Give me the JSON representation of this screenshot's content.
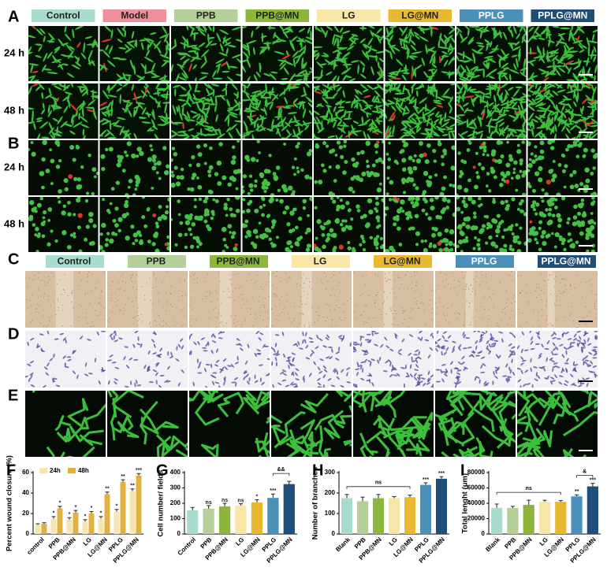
{
  "panel_labels": [
    "A",
    "B",
    "C",
    "D",
    "E",
    "F",
    "G",
    "H",
    "I"
  ],
  "groups_ab": [
    "Control",
    "Model",
    "PPB",
    "PPB@MN",
    "LG",
    "LG@MN",
    "PPLG",
    "PPLG@MN"
  ],
  "colors_ab": [
    "#a8dccf",
    "#ef8f9a",
    "#b5cf98",
    "#8db63c",
    "#f7e6a6",
    "#e8b92f",
    "#4a90b8",
    "#1f4e79"
  ],
  "times": [
    "24 h",
    "48 h"
  ],
  "groups_c": [
    "Control",
    "PPB",
    "PPB@MN",
    "LG",
    "LG@MN",
    "PPLG",
    "PPLG@MN"
  ],
  "colors_c": [
    "#a8dccf",
    "#b5cf98",
    "#8db63c",
    "#f7e6a6",
    "#e8b92f",
    "#4a90b8",
    "#1f4e79"
  ],
  "chart_data": [
    {
      "type": "grouped_bar",
      "ylabel": "Percent wound closure (%)",
      "categories": [
        "control",
        "PPB",
        "PPB@MN",
        "LG",
        "LG@MN",
        "PPLG",
        "PPLG@MN"
      ],
      "series": [
        {
          "name": "24h",
          "color": "#f5e6b0",
          "values": [
            9,
            15,
            14,
            12,
            15,
            22,
            42
          ],
          "errors": [
            1,
            2,
            2,
            2,
            2,
            2,
            2
          ],
          "significance": [
            null,
            "*",
            "*",
            "*",
            "*",
            "*",
            "**"
          ]
        },
        {
          "name": "48h",
          "color": "#e0b040",
          "values": [
            10,
            25,
            21,
            20,
            39,
            51,
            57
          ],
          "errors": [
            1,
            2,
            2,
            2,
            2,
            2,
            2
          ],
          "significance": [
            null,
            "*",
            "*",
            "*",
            "**",
            "**",
            "***"
          ]
        }
      ],
      "ylim": [
        0,
        60
      ],
      "yticks": [
        0,
        20,
        40,
        60
      ],
      "brackets": []
    },
    {
      "type": "bar",
      "ylabel": "Cell number/ fields",
      "categories": [
        "Control",
        "PPB",
        "PPB@MN",
        "LG",
        "LG@MN",
        "PPLG",
        "PPLG@MN"
      ],
      "values": [
        155,
        165,
        180,
        185,
        205,
        235,
        325
      ],
      "errors": [
        18,
        20,
        20,
        12,
        18,
        25,
        18
      ],
      "significance": [
        null,
        "ns",
        "ns",
        "ns",
        "*",
        "***",
        null
      ],
      "colors": [
        "#a8dccf",
        "#b5cf98",
        "#8db63c",
        "#f7e6a6",
        "#e8b92f",
        "#4a90b8",
        "#1f4e79"
      ],
      "ylim": [
        0,
        400
      ],
      "yticks": [
        0,
        100,
        200,
        300,
        400
      ],
      "brackets": [
        {
          "text": "&&",
          "from": 5,
          "to": 6
        }
      ]
    },
    {
      "type": "bar",
      "ylabel": "Number of branches",
      "categories": [
        "Blank",
        "PPB",
        "PPB@MN",
        "LG",
        "LG@MN",
        "PPLG",
        "PPLG@MN"
      ],
      "values": [
        175,
        160,
        175,
        175,
        180,
        240,
        270
      ],
      "errors": [
        18,
        20,
        18,
        8,
        10,
        10,
        10
      ],
      "significance": [
        null,
        null,
        null,
        null,
        null,
        "***",
        "***"
      ],
      "colors": [
        "#a8dccf",
        "#b5cf98",
        "#8db63c",
        "#f7e6a6",
        "#e8b92f",
        "#4a90b8",
        "#1f4e79"
      ],
      "ylim": [
        0,
        300
      ],
      "yticks": [
        0,
        100,
        200,
        300
      ],
      "brackets": [
        {
          "text": "ns",
          "from": 0,
          "to": 4
        }
      ]
    },
    {
      "type": "bar",
      "ylabel": "Total lenght (μm)",
      "categories": [
        "Blank",
        "PPB",
        "PPB@MN",
        "LG",
        "LG@MN",
        "PPLG",
        "PPLG@MN"
      ],
      "values": [
        34000,
        34000,
        38000,
        42000,
        42000,
        49000,
        62000
      ],
      "errors": [
        5000,
        2000,
        6000,
        2000,
        1500,
        2000,
        4000
      ],
      "significance": [
        null,
        null,
        null,
        null,
        null,
        "**",
        "***"
      ],
      "colors": [
        "#a8dccf",
        "#b5cf98",
        "#8db63c",
        "#f7e6a6",
        "#e8b92f",
        "#4a90b8",
        "#1f4e79"
      ],
      "ylim": [
        0,
        80000
      ],
      "yticks": [
        0,
        20000,
        40000,
        60000,
        80000
      ],
      "brackets": [
        {
          "text": "ns",
          "from": 0,
          "to": 4
        },
        {
          "text": "&",
          "from": 5,
          "to": 6
        }
      ]
    }
  ]
}
